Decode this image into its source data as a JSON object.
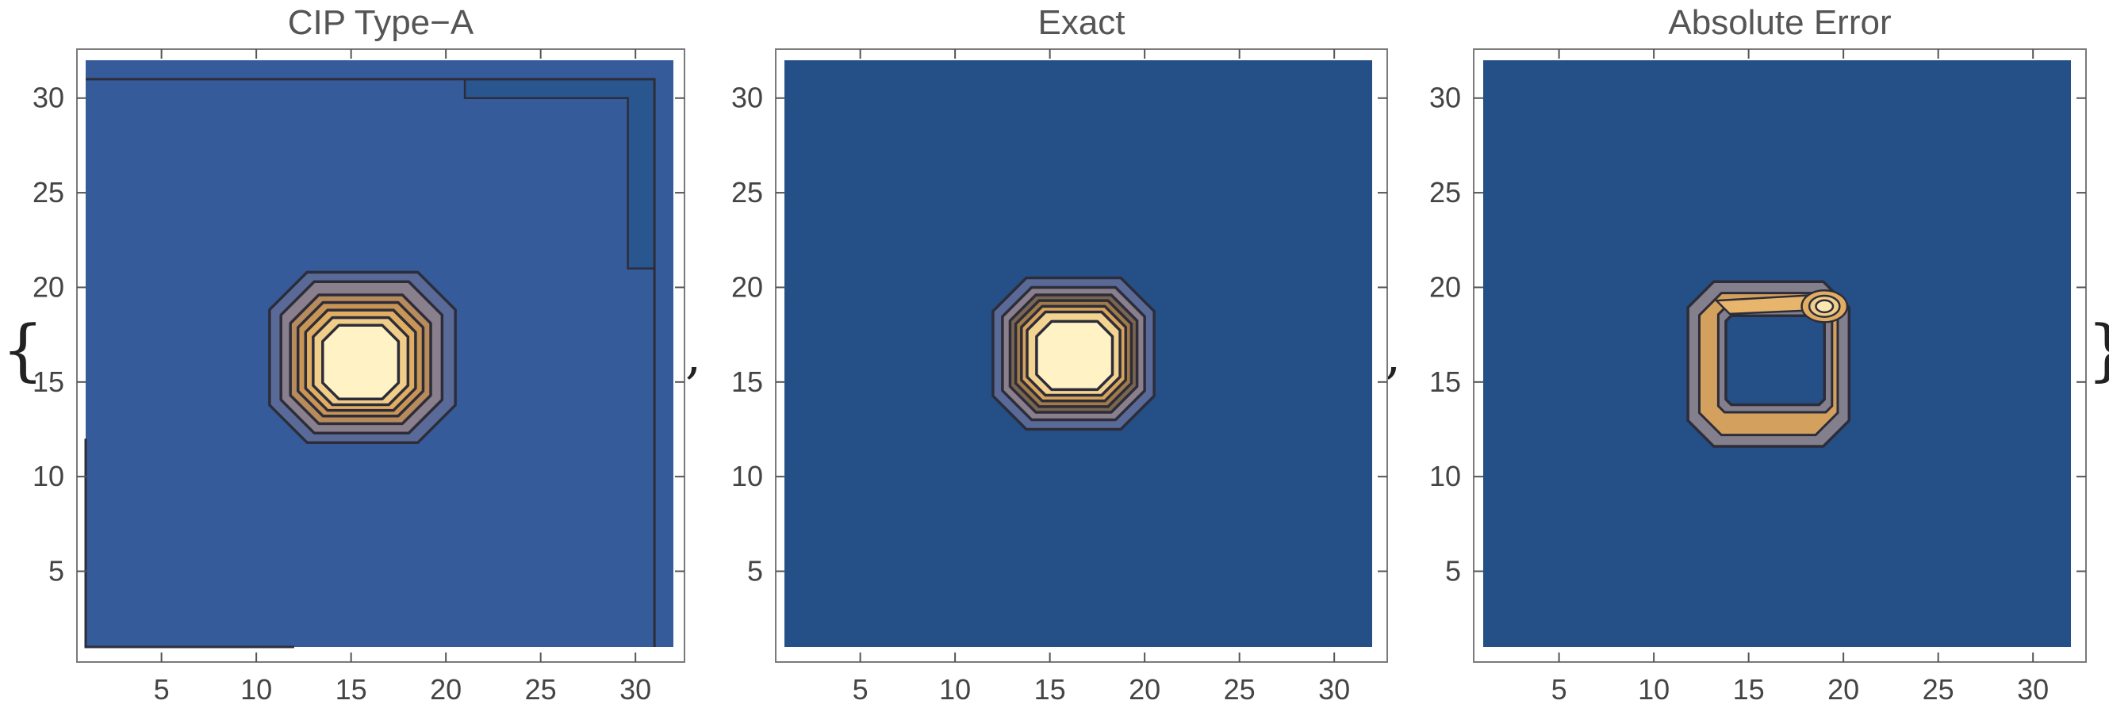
{
  "list_open": "{",
  "list_close": "}",
  "separator": ",",
  "colors": {
    "background": "#245087",
    "contour_line": "#2d2d3a",
    "frame": "#7a7a7a",
    "levels": [
      "#5a6a98",
      "#8a7f8c",
      "#a88a6a",
      "#c89555",
      "#e0ad62",
      "#f0cd88",
      "#fbe7b0",
      "#fff4c8"
    ]
  },
  "chart_data": [
    {
      "type": "contour",
      "title": "CIP Type−A",
      "xlim": [
        1,
        32
      ],
      "ylim": [
        1,
        32
      ],
      "xticks": [
        5,
        10,
        15,
        20,
        25,
        30
      ],
      "yticks": [
        5,
        10,
        15,
        20,
        25,
        30
      ],
      "background": "#365b9a",
      "center": [
        16,
        16
      ],
      "peak_value": 1.0,
      "contours": [
        {
          "level": 0.05,
          "x": [
            10.7,
            20.5
          ],
          "y": [
            11.8,
            20.8
          ],
          "color": "#5a6a98"
        },
        {
          "level": 0.15,
          "x": [
            11.3,
            19.8
          ],
          "y": [
            12.3,
            20.3
          ],
          "color": "#8a7f8c"
        },
        {
          "level": 0.3,
          "x": [
            11.8,
            19.2
          ],
          "y": [
            12.8,
            19.6
          ],
          "color": "#b88b5c"
        },
        {
          "level": 0.45,
          "x": [
            12.2,
            18.8
          ],
          "y": [
            13.2,
            19.2
          ],
          "color": "#c89555"
        },
        {
          "level": 0.6,
          "x": [
            12.6,
            18.4
          ],
          "y": [
            13.5,
            18.8
          ],
          "color": "#e0ad62"
        },
        {
          "level": 0.75,
          "x": [
            13.0,
            18.0
          ],
          "y": [
            13.8,
            18.4
          ],
          "color": "#f0cd88"
        },
        {
          "level": 0.9,
          "x": [
            13.5,
            17.5
          ],
          "y": [
            14.1,
            18.0
          ],
          "color": "#fff2c4"
        }
      ],
      "boundary_region": {
        "x": [
          21,
          31
        ],
        "y": [
          21,
          31
        ],
        "color": "#2a5690"
      }
    },
    {
      "type": "contour",
      "title": "Exact",
      "xlim": [
        1,
        32
      ],
      "ylim": [
        1,
        32
      ],
      "xticks": [
        5,
        10,
        15,
        20,
        25,
        30
      ],
      "yticks": [
        5,
        10,
        15,
        20,
        25,
        30
      ],
      "background": "#245087",
      "center": [
        16,
        16
      ],
      "peak_value": 1.0,
      "contours": [
        {
          "level": 0.05,
          "x": [
            12.0,
            20.5
          ],
          "y": [
            12.5,
            20.5
          ],
          "color": "#5a6a98"
        },
        {
          "level": 0.15,
          "x": [
            12.5,
            20.0
          ],
          "y": [
            13.0,
            20.0
          ],
          "color": "#8a7f8c"
        },
        {
          "level": 0.3,
          "x": [
            12.9,
            19.6
          ],
          "y": [
            13.4,
            19.6
          ],
          "color": "#7a6550"
        },
        {
          "level": 0.45,
          "x": [
            13.2,
            19.3
          ],
          "y": [
            13.7,
            19.3
          ],
          "color": "#a07a48"
        },
        {
          "level": 0.6,
          "x": [
            13.5,
            19.0
          ],
          "y": [
            14.0,
            19.0
          ],
          "color": "#d8a35a"
        },
        {
          "level": 0.75,
          "x": [
            13.8,
            18.7
          ],
          "y": [
            14.3,
            18.7
          ],
          "color": "#f2d490"
        },
        {
          "level": 0.9,
          "x": [
            14.3,
            18.3
          ],
          "y": [
            14.6,
            18.2
          ],
          "color": "#fff2c4"
        }
      ]
    },
    {
      "type": "contour",
      "title": "Absolute Error",
      "xlim": [
        1,
        32
      ],
      "ylim": [
        1,
        32
      ],
      "xticks": [
        5,
        10,
        15,
        20,
        25,
        30
      ],
      "yticks": [
        5,
        10,
        15,
        20,
        25,
        30
      ],
      "background": "#245087",
      "ring": {
        "outer": {
          "x": [
            11.8,
            20.3
          ],
          "y": [
            11.6,
            20.3
          ]
        },
        "inner": {
          "x": [
            13.8,
            19.0
          ],
          "y": [
            13.8,
            18.5
          ]
        }
      },
      "peak": [
        19.0,
        19.0
      ]
    }
  ]
}
